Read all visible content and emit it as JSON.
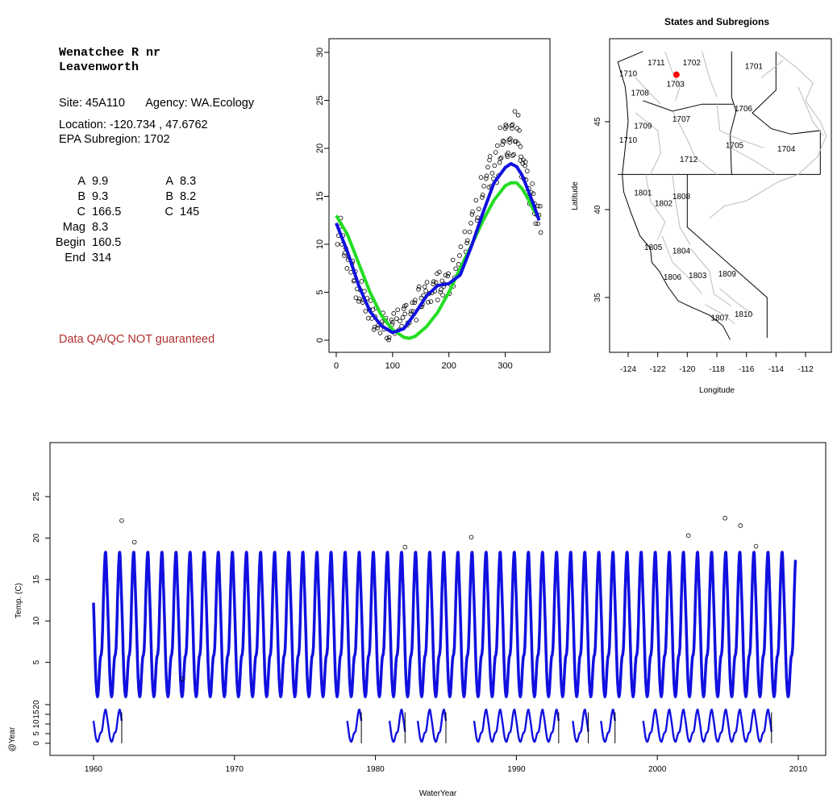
{
  "station": {
    "name": "Wenatchee R nr\nLeavenworth",
    "site_label": "Site: 45A110",
    "agency_label": "Agency: WA.Ecology",
    "location_label": "Location: -120.734 , 47.6762",
    "subregion_label": "EPA Subregion: 1702"
  },
  "params": {
    "left": [
      {
        "label": "A",
        "value": "9.9"
      },
      {
        "label": "B",
        "value": "9.3"
      },
      {
        "label": "C",
        "value": "166.5"
      },
      {
        "label": "Mag",
        "value": "8.3"
      },
      {
        "label": "Begin",
        "value": "160.5"
      },
      {
        "label": "End",
        "value": "314"
      }
    ],
    "right": [
      {
        "label": "A",
        "value": "8.3"
      },
      {
        "label": "B",
        "value": "8.2"
      },
      {
        "label": "C",
        "value": "145"
      }
    ]
  },
  "disclaimer": "Data QA/QC NOT guaranteed",
  "colors": {
    "fit_primary": "#1010e0",
    "fit_secondary": "#22dd22",
    "points": "#000000",
    "site_marker": "#ff0000",
    "disclaimer": "#b03030",
    "map_lines": "#bbbbbb"
  },
  "chart_data": [
    {
      "type": "scatter",
      "title": "",
      "xlabel": "",
      "ylabel": "",
      "xlim": [
        0,
        365
      ],
      "ylim": [
        0,
        30
      ],
      "x_ticks": [
        0,
        100,
        200,
        300
      ],
      "y_ticks": [
        0,
        5,
        10,
        15,
        20,
        25,
        30
      ],
      "series": [
        {
          "type": "scatter",
          "note_points": "daily observations",
          "x": [
            5,
            12,
            20,
            28,
            35,
            42,
            50,
            58,
            65,
            72,
            80,
            88,
            95,
            102,
            110,
            118,
            125,
            132,
            140,
            148,
            155,
            162,
            170,
            178,
            185,
            192,
            200,
            210,
            220,
            230,
            240,
            250,
            260,
            268,
            275,
            282,
            288,
            294,
            300,
            305,
            310,
            315,
            320,
            325,
            330,
            335,
            340,
            345,
            350,
            355,
            360
          ],
          "y": [
            11.5,
            9.8,
            8.6,
            7.4,
            5.8,
            4.9,
            4.0,
            3.4,
            2.6,
            2.0,
            1.6,
            1.2,
            1.4,
            2.2,
            1.8,
            2.3,
            2.8,
            3.2,
            3.6,
            4.2,
            4.6,
            5.2,
            5.4,
            5.7,
            6.0,
            5.8,
            6.1,
            7.0,
            8.5,
            10.2,
            12.4,
            14.0,
            15.6,
            16.8,
            17.5,
            18.5,
            19.4,
            20.1,
            20.6,
            21.0,
            21.3,
            21.6,
            21.8,
            20.4,
            18.9,
            17.5,
            16.4,
            15.2,
            14.3,
            13.4,
            12.6
          ]
        },
        {
          "type": "line",
          "x": [
            0,
            20,
            40,
            60,
            80,
            100,
            120,
            140,
            160,
            180,
            200,
            220,
            240,
            260,
            280,
            300,
            310,
            320,
            330,
            340,
            350,
            360
          ],
          "y": [
            12.2,
            9.2,
            5.7,
            3.0,
            1.5,
            0.8,
            1.2,
            2.8,
            4.6,
            5.7,
            5.9,
            6.8,
            9.8,
            13.2,
            16.4,
            18.0,
            18.4,
            18.1,
            17.2,
            15.7,
            14.2,
            12.5
          ]
        },
        {
          "type": "line",
          "x": [
            0,
            20,
            40,
            60,
            80,
            100,
            120,
            130,
            140,
            160,
            180,
            200,
            220,
            240,
            260,
            280,
            300,
            310,
            320,
            330,
            340,
            350,
            360
          ],
          "y": [
            13.0,
            11.0,
            8.0,
            5.0,
            2.6,
            1.1,
            0.3,
            0.2,
            0.4,
            1.4,
            2.9,
            5.0,
            7.5,
            9.9,
            12.4,
            14.6,
            16.1,
            16.4,
            16.4,
            15.8,
            14.8,
            13.6,
            12.8
          ]
        }
      ]
    },
    {
      "type": "map",
      "title": "States and Subregions",
      "xlabel": "Longitude",
      "ylabel": "Latitude",
      "xlim": [
        -125.6,
        -110.6
      ],
      "ylim": [
        32.5,
        49.4
      ],
      "x_ticks": [
        -124,
        -122,
        -120,
        -118,
        -116,
        -114,
        -112
      ],
      "y_ticks": [
        35,
        40,
        45
      ],
      "regions": [
        {
          "label": "1701",
          "lon": -115.5,
          "lat": 48.0
        },
        {
          "label": "1702",
          "lon": -119.7,
          "lat": 48.2
        },
        {
          "label": "1703",
          "lon": -120.8,
          "lat": 47.0
        },
        {
          "label": "1704",
          "lon": -113.3,
          "lat": 43.3
        },
        {
          "label": "1705",
          "lon": -116.8,
          "lat": 43.5
        },
        {
          "label": "1706",
          "lon": -116.2,
          "lat": 45.6
        },
        {
          "label": "1707",
          "lon": -120.4,
          "lat": 45.0
        },
        {
          "label": "1708",
          "lon": -123.2,
          "lat": 46.5
        },
        {
          "label": "1709",
          "lon": -123.0,
          "lat": 44.6
        },
        {
          "label": "1710",
          "lon": -124.0,
          "lat": 47.6
        },
        {
          "label": "1710",
          "lon": -124.0,
          "lat": 43.8
        },
        {
          "label": "1711",
          "lon": -122.1,
          "lat": 48.2
        },
        {
          "label": "1712",
          "lon": -119.9,
          "lat": 42.7
        },
        {
          "label": "1801",
          "lon": -123.0,
          "lat": 40.8
        },
        {
          "label": "1802",
          "lon": -121.6,
          "lat": 40.2
        },
        {
          "label": "1808",
          "lon": -120.4,
          "lat": 40.6
        },
        {
          "label": "1804",
          "lon": -120.4,
          "lat": 37.5
        },
        {
          "label": "1805",
          "lon": -122.3,
          "lat": 37.7
        },
        {
          "label": "1806",
          "lon": -121.0,
          "lat": 36.0
        },
        {
          "label": "1803",
          "lon": -119.3,
          "lat": 36.1
        },
        {
          "label": "1809",
          "lon": -117.3,
          "lat": 36.2
        },
        {
          "label": "1807",
          "lon": -117.8,
          "lat": 33.7
        },
        {
          "label": "1810",
          "lon": -116.2,
          "lat": 33.9
        }
      ],
      "site": {
        "lon": -120.734,
        "lat": 47.6762
      }
    },
    {
      "type": "line",
      "title": "",
      "xlabel": "WaterYear",
      "ylabel": "Temp. (C)",
      "xlim": [
        1957.5,
        2012.5
      ],
      "ylim": [
        -1.5,
        29.5
      ],
      "x_ticks": [
        1960,
        1970,
        1980,
        1990,
        2000,
        2010
      ],
      "y_ticks": [
        5,
        10,
        15,
        20,
        25
      ],
      "series": [
        {
          "type": "line",
          "note": "seasonal fit per water year, min ~0.8 max ~18.4",
          "year_start": 1960,
          "year_end": 2009.8,
          "amplitude_max": 18.4,
          "amplitude_min": 0.8
        }
      ],
      "outliers": [
        {
          "x": 1962.0,
          "y": 22.1
        },
        {
          "x": 1962.9,
          "y": 19.5
        },
        {
          "x": 1966.3,
          "y": 3.0
        },
        {
          "x": 1982.1,
          "y": 18.9
        },
        {
          "x": 1986.8,
          "y": 20.1
        },
        {
          "x": 2002.2,
          "y": 20.3
        },
        {
          "x": 2004.8,
          "y": 22.4
        },
        {
          "x": 2005.9,
          "y": 21.5
        },
        {
          "x": 2007.0,
          "y": 19.0
        }
      ],
      "year_panel": {
        "ylabel": "@Year",
        "y_ticks": [
          0,
          5,
          10,
          15,
          20
        ],
        "segments": [
          [
            1960.0,
            1962.0
          ],
          [
            1978.0,
            1979.0
          ],
          [
            1981.0,
            1982.1
          ],
          [
            1983.0,
            1985.0
          ],
          [
            1987.0,
            1993.0
          ],
          [
            1994.0,
            1995.1
          ],
          [
            1996.0,
            1997.0
          ],
          [
            1999.0,
            2008.1
          ]
        ]
      }
    }
  ]
}
